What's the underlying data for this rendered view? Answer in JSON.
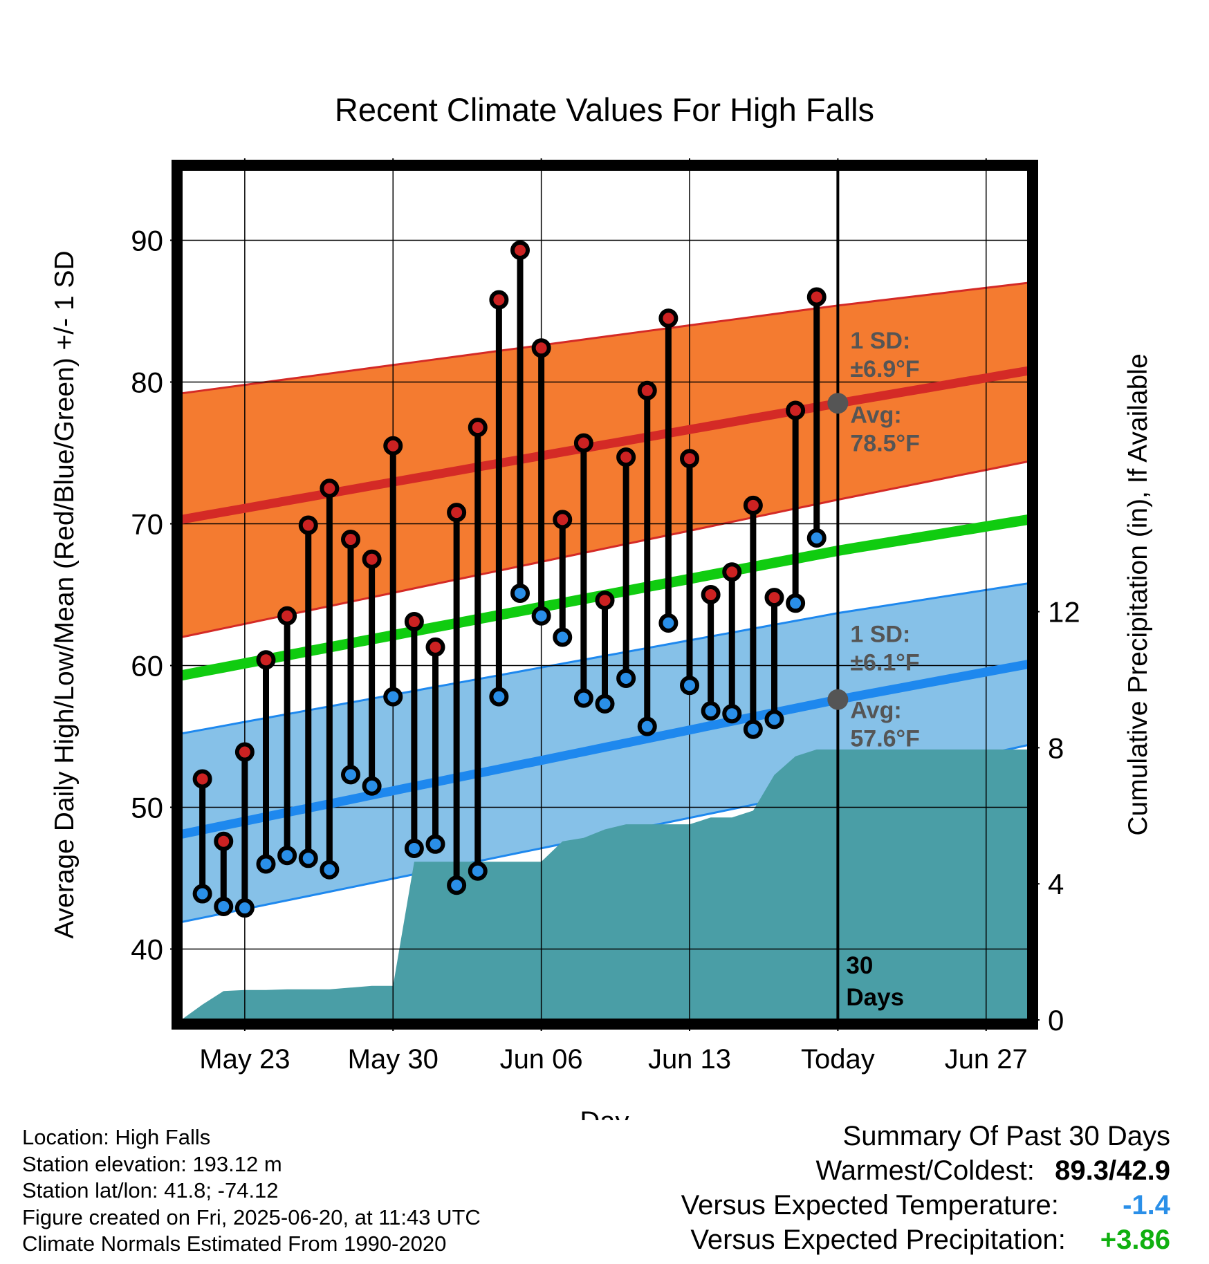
{
  "chart_data": {
    "type": "line",
    "title": "Recent Climate Values For High Falls",
    "xlabel": "Day",
    "ylabel_left": "Average Daily High/Low/Mean (Red/Blue/Green) +/- 1 SD",
    "ylabel_right": "Cumulative Precipitation (in), If Available",
    "x_range": [
      "2025-05-20",
      "2025-06-29"
    ],
    "y_left_range": [
      35,
      95
    ],
    "y_right_range": [
      0,
      25
    ],
    "y_left_ticks": [
      40,
      50,
      60,
      70,
      80,
      90
    ],
    "y_right_ticks": [
      0,
      4,
      8,
      12
    ],
    "x_ticks": [
      {
        "date": "2025-05-23",
        "label": "May 23"
      },
      {
        "date": "2025-05-30",
        "label": "May 30"
      },
      {
        "date": "2025-06-06",
        "label": "Jun 06"
      },
      {
        "date": "2025-06-13",
        "label": "Jun 13"
      },
      {
        "date": "2025-06-20",
        "label": "Today"
      },
      {
        "date": "2025-06-27",
        "label": "Jun 27"
      }
    ],
    "grid": true,
    "today": "2025-06-20",
    "period_label": [
      "30",
      "Days"
    ],
    "daily": [
      {
        "date": "2025-05-21",
        "high": 52.0,
        "low": 43.9
      },
      {
        "date": "2025-05-22",
        "high": 47.6,
        "low": 43.0
      },
      {
        "date": "2025-05-23",
        "high": 53.9,
        "low": 42.9
      },
      {
        "date": "2025-05-24",
        "high": 60.4,
        "low": 46.0
      },
      {
        "date": "2025-05-25",
        "high": 63.5,
        "low": 46.6
      },
      {
        "date": "2025-05-26",
        "high": 69.9,
        "low": 46.4
      },
      {
        "date": "2025-05-27",
        "high": 72.5,
        "low": 45.6
      },
      {
        "date": "2025-05-28",
        "high": 68.9,
        "low": 52.3
      },
      {
        "date": "2025-05-29",
        "high": 67.5,
        "low": 51.5
      },
      {
        "date": "2025-05-30",
        "high": 75.5,
        "low": 57.8
      },
      {
        "date": "2025-05-31",
        "high": 63.1,
        "low": 47.1
      },
      {
        "date": "2025-06-01",
        "high": 61.3,
        "low": 47.4
      },
      {
        "date": "2025-06-02",
        "high": 70.8,
        "low": 44.5
      },
      {
        "date": "2025-06-03",
        "high": 76.8,
        "low": 45.5
      },
      {
        "date": "2025-06-04",
        "high": 85.8,
        "low": 57.8
      },
      {
        "date": "2025-06-05",
        "high": 89.3,
        "low": 65.1
      },
      {
        "date": "2025-06-06",
        "high": 82.4,
        "low": 63.5
      },
      {
        "date": "2025-06-07",
        "high": 70.3,
        "low": 62.0
      },
      {
        "date": "2025-06-08",
        "high": 75.7,
        "low": 57.7
      },
      {
        "date": "2025-06-09",
        "high": 64.6,
        "low": 57.3
      },
      {
        "date": "2025-06-10",
        "high": 74.7,
        "low": 59.1
      },
      {
        "date": "2025-06-11",
        "high": 79.4,
        "low": 55.7
      },
      {
        "date": "2025-06-12",
        "high": 84.5,
        "low": 63.0
      },
      {
        "date": "2025-06-13",
        "high": 74.6,
        "low": 58.6
      },
      {
        "date": "2025-06-14",
        "high": 65.0,
        "low": 56.8
      },
      {
        "date": "2025-06-15",
        "high": 66.6,
        "low": 56.6
      },
      {
        "date": "2025-06-16",
        "high": 71.3,
        "low": 55.5
      },
      {
        "date": "2025-06-17",
        "high": 64.8,
        "low": 56.2
      },
      {
        "date": "2025-06-18",
        "high": 78.0,
        "low": 64.4
      },
      {
        "date": "2025-06-19",
        "high": 86.0,
        "low": 69.0
      }
    ],
    "normals": {
      "x": [
        "2025-05-20",
        "2025-06-20",
        "2025-06-29"
      ],
      "avg_high": [
        70.3,
        78.5,
        80.8
      ],
      "avg_high_upper": [
        79.2,
        85.4,
        87.0
      ],
      "avg_high_lower": [
        62.0,
        71.7,
        74.4
      ],
      "avg_mean": [
        59.3,
        68.1,
        70.3
      ],
      "avg_low": [
        48.1,
        57.6,
        60.1
      ],
      "avg_low_upper": [
        55.2,
        63.7,
        65.8
      ],
      "avg_low_lower": [
        41.9,
        51.4,
        54.4
      ]
    },
    "cumulative_precip": {
      "x": [
        "2025-05-20",
        "2025-05-21",
        "2025-05-22",
        "2025-05-23",
        "2025-05-24",
        "2025-05-25",
        "2025-05-26",
        "2025-05-27",
        "2025-05-28",
        "2025-05-29",
        "2025-05-30",
        "2025-05-31",
        "2025-06-01",
        "2025-06-02",
        "2025-06-03",
        "2025-06-04",
        "2025-06-05",
        "2025-06-06",
        "2025-06-07",
        "2025-06-08",
        "2025-06-09",
        "2025-06-10",
        "2025-06-11",
        "2025-06-12",
        "2025-06-13",
        "2025-06-14",
        "2025-06-15",
        "2025-06-16",
        "2025-06-17",
        "2025-06-18",
        "2025-06-19",
        "2025-06-20",
        "2025-06-29"
      ],
      "values": [
        0.0,
        0.45,
        0.85,
        0.88,
        0.88,
        0.9,
        0.9,
        0.9,
        0.95,
        1.0,
        1.0,
        4.65,
        4.65,
        4.65,
        4.65,
        4.65,
        4.65,
        4.65,
        5.25,
        5.35,
        5.6,
        5.75,
        5.75,
        5.75,
        5.75,
        5.95,
        5.95,
        6.15,
        7.2,
        7.75,
        7.95,
        7.95,
        7.95
      ]
    },
    "annotations": [
      {
        "lines": [
          "1 SD:",
          "±6.9°F"
        ]
      },
      {
        "lines": [
          "Avg:",
          "78.5°F"
        ]
      },
      {
        "lines": [
          "1 SD:",
          "±6.1°F"
        ]
      },
      {
        "lines": [
          "Avg:",
          "57.6°F"
        ]
      }
    ],
    "colors": {
      "high_band": "#f47b30",
      "high_line": "#d42a26",
      "mean_line": "#10cc10",
      "low_band": "#86c1e8",
      "low_line": "#1e88ee",
      "precip": "#4a9ea6",
      "high_dot": "#cc2222",
      "low_dot": "#2a8fe8",
      "annotation": "#555555"
    }
  },
  "info": {
    "location": "Location: High Falls",
    "elevation": "Station elevation: 193.12 m",
    "latlon": "Station lat/lon: 41.8; -74.12",
    "created": "Figure created on Fri, 2025-06-20, at 11:43 UTC",
    "normals": "Climate Normals Estimated From 1990-2020"
  },
  "summary": {
    "title": "Summary Of Past 30 Days",
    "warm_cold_label": "Warmest/Coldest:",
    "warm_cold_value": "89.3/42.9",
    "temp_label": "Versus Expected Temperature:",
    "temp_value": "-1.4",
    "temp_color": "#2a8fe8",
    "precip_label": "Versus Expected Precipitation:",
    "precip_value": "+3.86",
    "precip_color": "#10b010"
  }
}
